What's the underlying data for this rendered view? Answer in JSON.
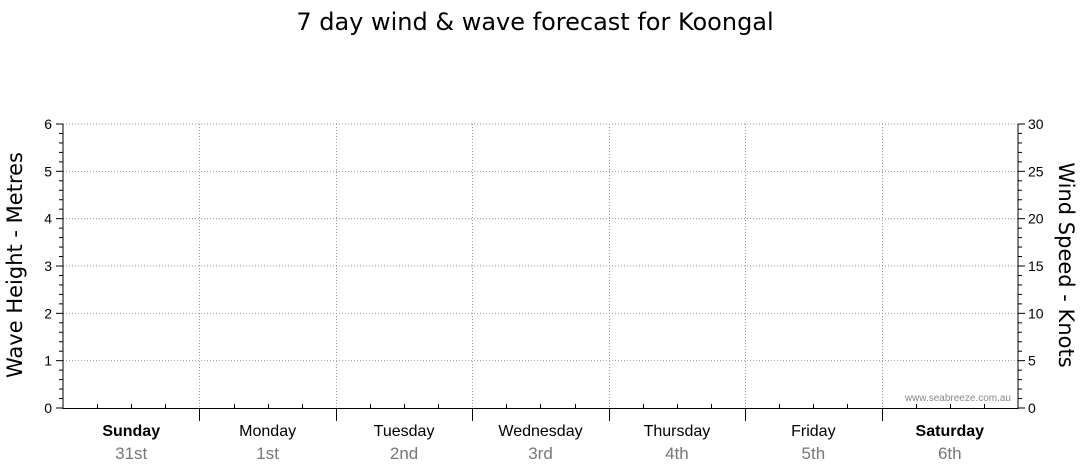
{
  "chart_data": {
    "type": "line",
    "title": "7 day wind & wave forecast for Koongal",
    "left_axis": {
      "label": "Wave Height - Metres",
      "range": [
        0,
        6
      ],
      "ticks": [
        0,
        1,
        2,
        3,
        4,
        5,
        6
      ],
      "minor_per_major": 5
    },
    "right_axis": {
      "label": "Wind Speed - Knots",
      "range": [
        0,
        30
      ],
      "ticks": [
        0,
        5,
        10,
        15,
        20,
        25,
        30
      ]
    },
    "days": [
      {
        "name": "Sunday",
        "date": "31st",
        "bold": true
      },
      {
        "name": "Monday",
        "date": "1st",
        "bold": false
      },
      {
        "name": "Tuesday",
        "date": "2nd",
        "bold": false
      },
      {
        "name": "Wednesday",
        "date": "3rd",
        "bold": false
      },
      {
        "name": "Thursday",
        "date": "4th",
        "bold": false
      },
      {
        "name": "Friday",
        "date": "5th",
        "bold": false
      },
      {
        "name": "Saturday",
        "date": "6th",
        "bold": true
      }
    ],
    "grid": true,
    "series": [],
    "watermark": "www.seabreeze.com.au"
  }
}
